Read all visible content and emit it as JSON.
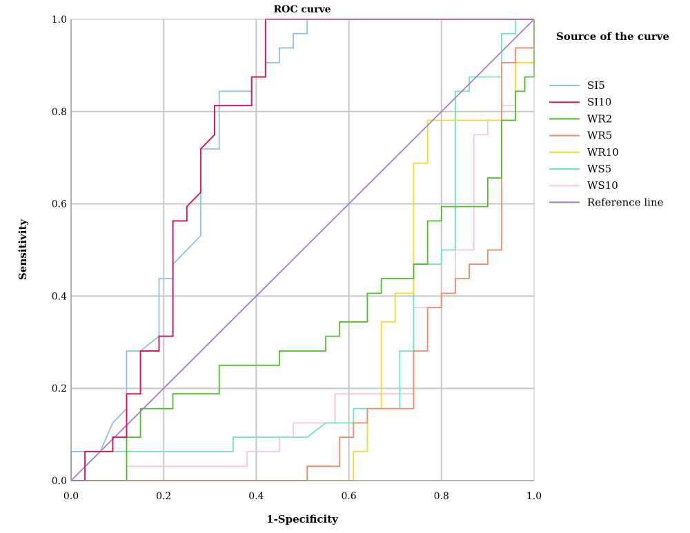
{
  "chart_data": {
    "type": "line",
    "title": "ROC curve",
    "xlabel": "1-Specificity",
    "ylabel": "Sensitivity",
    "xlim": [
      0,
      1
    ],
    "ylim": [
      0,
      1
    ],
    "grid": true,
    "xticks": [
      "0.0",
      "0.2",
      "0.4",
      "0.6",
      "0.8",
      "1.0"
    ],
    "yticks": [
      "0.0",
      "0.2",
      "0.4",
      "0.6",
      "0.8",
      "1.0"
    ],
    "legend_title": "Source of the curve",
    "legend_position": "right",
    "series": [
      {
        "name": "SI5",
        "color": "#8ec0e6",
        "points": [
          [
            0,
            0
          ],
          [
            0,
            0.063
          ],
          [
            0.063,
            0.063
          ],
          [
            0.09,
            0.125
          ],
          [
            0.12,
            0.156
          ],
          [
            0.12,
            0.281
          ],
          [
            0.15,
            0.281
          ],
          [
            0.19,
            0.313
          ],
          [
            0.19,
            0.438
          ],
          [
            0.22,
            0.438
          ],
          [
            0.22,
            0.469
          ],
          [
            0.28,
            0.531
          ],
          [
            0.28,
            0.719
          ],
          [
            0.32,
            0.719
          ],
          [
            0.32,
            0.844
          ],
          [
            0.39,
            0.844
          ],
          [
            0.39,
            0.875
          ],
          [
            0.42,
            0.875
          ],
          [
            0.42,
            0.906
          ],
          [
            0.45,
            0.906
          ],
          [
            0.45,
            0.938
          ],
          [
            0.48,
            0.938
          ],
          [
            0.48,
            0.969
          ],
          [
            0.51,
            0.969
          ],
          [
            0.51,
            1
          ],
          [
            1,
            1
          ]
        ]
      },
      {
        "name": "SI10",
        "color": "#d91a5a",
        "points": [
          [
            0,
            0
          ],
          [
            0.03,
            0
          ],
          [
            0.03,
            0.063
          ],
          [
            0.06,
            0.063
          ],
          [
            0.09,
            0.063
          ],
          [
            0.09,
            0.094
          ],
          [
            0.12,
            0.094
          ],
          [
            0.12,
            0.188
          ],
          [
            0.15,
            0.188
          ],
          [
            0.15,
            0.281
          ],
          [
            0.19,
            0.281
          ],
          [
            0.19,
            0.313
          ],
          [
            0.22,
            0.313
          ],
          [
            0.22,
            0.563
          ],
          [
            0.25,
            0.563
          ],
          [
            0.25,
            0.594
          ],
          [
            0.28,
            0.625
          ],
          [
            0.28,
            0.719
          ],
          [
            0.31,
            0.75
          ],
          [
            0.31,
            0.813
          ],
          [
            0.39,
            0.813
          ],
          [
            0.39,
            0.875
          ],
          [
            0.42,
            0.875
          ],
          [
            0.42,
            1
          ],
          [
            1,
            1
          ]
        ]
      },
      {
        "name": "WR2",
        "color": "#4cbf2b",
        "points": [
          [
            0,
            0
          ],
          [
            0.12,
            0
          ],
          [
            0.12,
            0.094
          ],
          [
            0.15,
            0.094
          ],
          [
            0.15,
            0.156
          ],
          [
            0.19,
            0.156
          ],
          [
            0.22,
            0.156
          ],
          [
            0.22,
            0.188
          ],
          [
            0.32,
            0.188
          ],
          [
            0.32,
            0.25
          ],
          [
            0.45,
            0.25
          ],
          [
            0.45,
            0.281
          ],
          [
            0.55,
            0.281
          ],
          [
            0.55,
            0.313
          ],
          [
            0.58,
            0.313
          ],
          [
            0.58,
            0.344
          ],
          [
            0.64,
            0.344
          ],
          [
            0.64,
            0.406
          ],
          [
            0.67,
            0.406
          ],
          [
            0.67,
            0.438
          ],
          [
            0.74,
            0.438
          ],
          [
            0.74,
            0.469
          ],
          [
            0.77,
            0.469
          ],
          [
            0.77,
            0.563
          ],
          [
            0.8,
            0.563
          ],
          [
            0.8,
            0.594
          ],
          [
            0.9,
            0.594
          ],
          [
            0.9,
            0.656
          ],
          [
            0.93,
            0.656
          ],
          [
            0.93,
            0.781
          ],
          [
            0.96,
            0.781
          ],
          [
            0.96,
            0.844
          ],
          [
            0.98,
            0.844
          ],
          [
            0.98,
            0.875
          ],
          [
            1,
            0.875
          ],
          [
            1,
            1
          ]
        ]
      },
      {
        "name": "WR5",
        "color": "#f08a68",
        "points": [
          [
            0,
            0
          ],
          [
            0.51,
            0
          ],
          [
            0.51,
            0.031
          ],
          [
            0.58,
            0.031
          ],
          [
            0.58,
            0.094
          ],
          [
            0.61,
            0.094
          ],
          [
            0.61,
            0.125
          ],
          [
            0.64,
            0.125
          ],
          [
            0.64,
            0.156
          ],
          [
            0.74,
            0.156
          ],
          [
            0.74,
            0.281
          ],
          [
            0.77,
            0.281
          ],
          [
            0.77,
            0.375
          ],
          [
            0.8,
            0.375
          ],
          [
            0.8,
            0.406
          ],
          [
            0.83,
            0.406
          ],
          [
            0.83,
            0.438
          ],
          [
            0.86,
            0.438
          ],
          [
            0.86,
            0.469
          ],
          [
            0.9,
            0.469
          ],
          [
            0.9,
            0.5
          ],
          [
            0.93,
            0.5
          ],
          [
            0.93,
            0.906
          ],
          [
            0.96,
            0.906
          ],
          [
            0.96,
            0.938
          ],
          [
            1,
            0.938
          ],
          [
            1,
            1
          ]
        ]
      },
      {
        "name": "WR10",
        "color": "#f2dc2a",
        "points": [
          [
            0,
            0
          ],
          [
            0.61,
            0
          ],
          [
            0.61,
            0.063
          ],
          [
            0.64,
            0.063
          ],
          [
            0.64,
            0.156
          ],
          [
            0.67,
            0.156
          ],
          [
            0.67,
            0.344
          ],
          [
            0.7,
            0.344
          ],
          [
            0.7,
            0.406
          ],
          [
            0.74,
            0.406
          ],
          [
            0.74,
            0.688
          ],
          [
            0.77,
            0.688
          ],
          [
            0.77,
            0.781
          ],
          [
            0.96,
            0.781
          ],
          [
            0.96,
            0.906
          ],
          [
            1,
            0.906
          ],
          [
            1,
            1
          ]
        ]
      },
      {
        "name": "WS5",
        "color": "#6de8b8",
        "points": [
          [
            0,
            0
          ],
          [
            0,
            0.063
          ],
          [
            0.35,
            0.063
          ],
          [
            0.35,
            0.094
          ],
          [
            0.51,
            0.094
          ],
          [
            0.55,
            0.125
          ],
          [
            0.61,
            0.125
          ],
          [
            0.61,
            0.156
          ],
          [
            0.71,
            0.156
          ],
          [
            0.71,
            0.281
          ],
          [
            0.74,
            0.281
          ],
          [
            0.74,
            0.469
          ],
          [
            0.8,
            0.469
          ],
          [
            0.8,
            0.5
          ],
          [
            0.83,
            0.5
          ],
          [
            0.83,
            0.844
          ],
          [
            0.86,
            0.844
          ],
          [
            0.86,
            0.875
          ],
          [
            0.93,
            0.875
          ],
          [
            0.93,
            0.969
          ],
          [
            0.96,
            0.969
          ],
          [
            0.96,
            1
          ],
          [
            1,
            1
          ]
        ]
      },
      {
        "name": "WS10",
        "color": "#f7c6e6",
        "points": [
          [
            0,
            0
          ],
          [
            0.12,
            0
          ],
          [
            0.12,
            0.031
          ],
          [
            0.38,
            0.031
          ],
          [
            0.38,
            0.063
          ],
          [
            0.45,
            0.063
          ],
          [
            0.45,
            0.094
          ],
          [
            0.48,
            0.094
          ],
          [
            0.48,
            0.125
          ],
          [
            0.57,
            0.125
          ],
          [
            0.57,
            0.188
          ],
          [
            0.74,
            0.188
          ],
          [
            0.74,
            0.375
          ],
          [
            0.8,
            0.375
          ],
          [
            0.8,
            0.406
          ],
          [
            0.83,
            0.406
          ],
          [
            0.83,
            0.469
          ],
          [
            0.83,
            0.5
          ],
          [
            0.87,
            0.5
          ],
          [
            0.87,
            0.75
          ],
          [
            0.9,
            0.75
          ],
          [
            0.9,
            0.781
          ],
          [
            0.93,
            0.781
          ],
          [
            0.93,
            0.813
          ],
          [
            0.96,
            0.813
          ],
          [
            0.96,
            0.938
          ],
          [
            1,
            0.938
          ],
          [
            1,
            1
          ]
        ]
      },
      {
        "name": "Reference line",
        "color": "#a87ad8",
        "points": [
          [
            0,
            0
          ],
          [
            1,
            1
          ]
        ]
      }
    ]
  }
}
